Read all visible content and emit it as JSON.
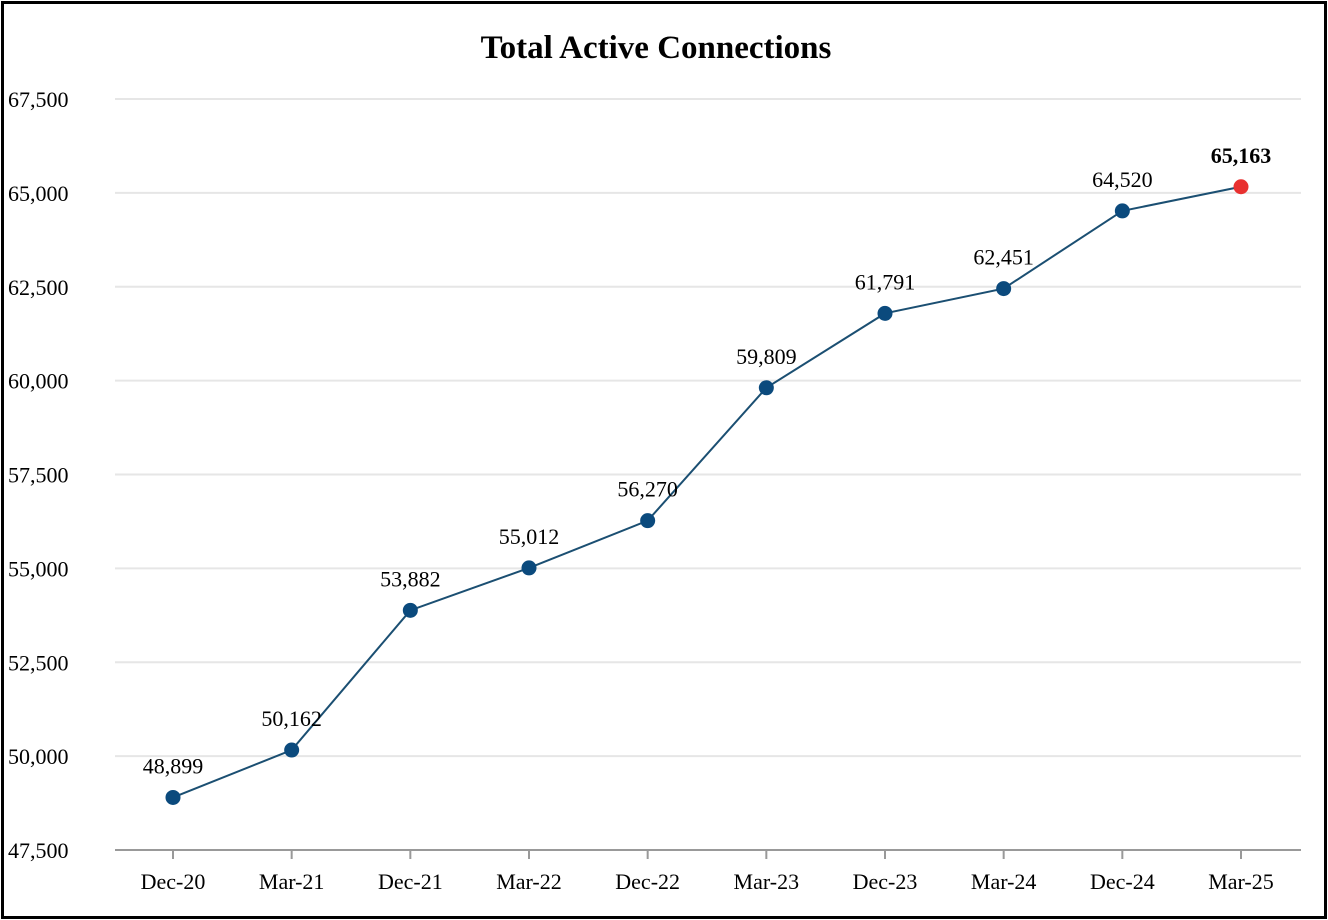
{
  "chart_data": {
    "type": "line",
    "title": "Total Active Connections",
    "xlabel": "",
    "ylabel": "",
    "categories": [
      "Dec-20",
      "Mar-21",
      "Dec-21",
      "Mar-22",
      "Dec-22",
      "Mar-23",
      "Dec-23",
      "Mar-24",
      "Dec-24",
      "Mar-25"
    ],
    "series": [
      {
        "values": [
          48899,
          50162,
          53882,
          55012,
          56270,
          59809,
          61791,
          62451,
          64520,
          65163
        ],
        "labels": [
          "48,899",
          "50,162",
          "53,882",
          "55,012",
          "56,270",
          "59,809",
          "61,791",
          "62,451",
          "64,520",
          "65,163"
        ]
      }
    ],
    "ylim": [
      47500,
      67500
    ],
    "yticks": [
      47500,
      50000,
      52500,
      55000,
      57500,
      60000,
      62500,
      65000,
      67500
    ],
    "ytick_labels": [
      "47,500",
      "50,000",
      "52,500",
      "55,000",
      "57,500",
      "60,000",
      "62,500",
      "65,000",
      "67,500"
    ],
    "grid": true,
    "legend": "none",
    "highlight_index": 9,
    "colors": {
      "line": "#1b4f72",
      "marker": "#0b4a7d",
      "highlight_marker": "#e8302f",
      "grid": "#e6e6e6",
      "axis": "#999999"
    }
  }
}
